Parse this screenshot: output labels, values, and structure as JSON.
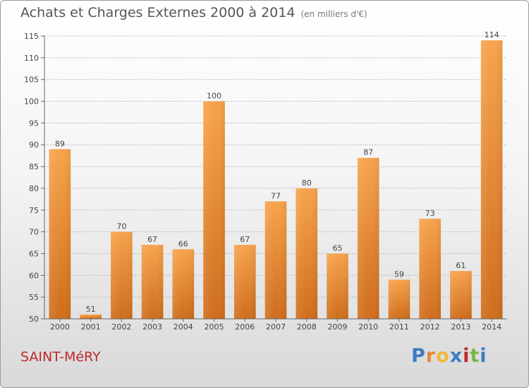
{
  "title": "Achats et Charges Externes 2000 à 2014",
  "subtitle": "(en milliers d'€)",
  "commune": "SAINT-MéRY",
  "logo": {
    "letters": [
      "P",
      "r",
      "o",
      "x",
      "i",
      "t",
      "i"
    ]
  },
  "colors": {
    "bar_top": "#f7a34c",
    "bar_bottom": "#cf6d1c",
    "grid": "#b5b5b5",
    "commune": "#c0282d"
  },
  "chart_data": {
    "type": "bar",
    "title": "Achats et Charges Externes 2000 à 2014",
    "subtitle": "(en milliers d'€)",
    "categories": [
      "2000",
      "2001",
      "2002",
      "2003",
      "2004",
      "2005",
      "2006",
      "2007",
      "2008",
      "2009",
      "2010",
      "2011",
      "2012",
      "2013",
      "2014"
    ],
    "values": [
      89,
      51,
      70,
      67,
      66,
      100,
      67,
      77,
      80,
      65,
      87,
      59,
      73,
      61,
      114
    ],
    "ylim": [
      50,
      115
    ],
    "yticks": [
      50,
      55,
      60,
      65,
      70,
      75,
      80,
      85,
      90,
      95,
      100,
      105,
      110,
      115
    ],
    "grid": true,
    "xlabel": "",
    "ylabel": ""
  }
}
